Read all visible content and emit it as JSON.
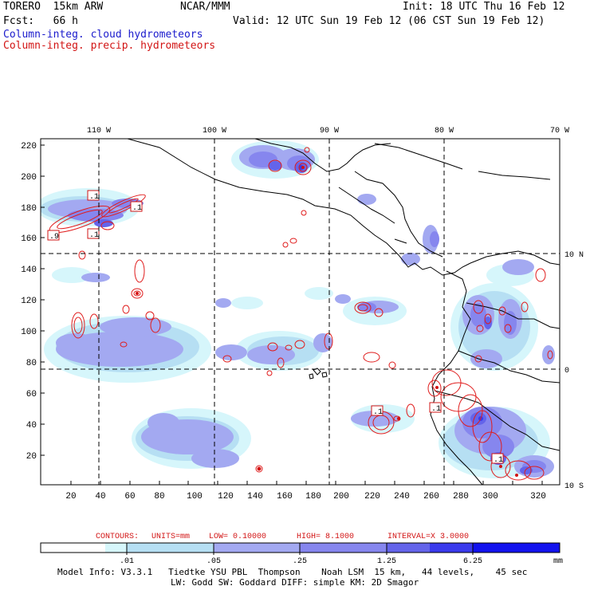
{
  "header": {
    "model": "TORERO  15km ARW",
    "org": "NCAR/MMM",
    "init": "Init: 18 UTC Thu 16 Feb 12",
    "fcst": "Fcst:   66 h",
    "valid": "Valid: 12 UTC Sun 19 Feb 12 (06 CST Sun 19 Feb 12)",
    "legend_cloud": "Column-integ. cloud hydrometeors",
    "legend_precip": "Column-integ. precip. hydrometeors"
  },
  "map": {
    "lon_labels": [
      "110 W",
      "100 W",
      "90 W",
      "80 W",
      "70 W"
    ],
    "lat_labels": [
      "10 N",
      "0",
      "10 S"
    ],
    "y_ticks": [
      "220",
      "200",
      "180",
      "160",
      "140",
      "120",
      "100",
      "80",
      "60",
      "40",
      "20"
    ],
    "x_ticks": [
      "20",
      "40",
      "60",
      "80",
      "100",
      "120",
      "140",
      "160",
      "180",
      "200",
      "220",
      "240",
      "260",
      "280",
      "300",
      "320"
    ],
    "box_labels": [
      ".1",
      ".1",
      ".9",
      ".1",
      ".1",
      ".1",
      ".1"
    ]
  },
  "contour_info": {
    "contours": "CONTOURS:",
    "units": "UNITS=mm",
    "low": "LOW= 0.10000",
    "high": "HIGH=  8.1000",
    "interval": "INTERVAL=X  3.0000"
  },
  "colorbar": {
    "unit": "mm",
    "labels": [
      ".01",
      ".05",
      ".25",
      "1.25",
      "6.25"
    ],
    "colors": [
      "#ffffff",
      "#d6f6fb",
      "#b6dff3",
      "#a3a9f1",
      "#8686ee",
      "#6464ea",
      "#3a3aec",
      "#1212ee"
    ]
  },
  "footer": {
    "line1": "Model Info: V3.3.1   Tiedtke YSU PBL  Thompson    Noah LSM  15 km,   44 levels,    45 sec",
    "line2": "LW: Godd SW: Goddard DIFF: simple KM: 2D Smagor"
  }
}
